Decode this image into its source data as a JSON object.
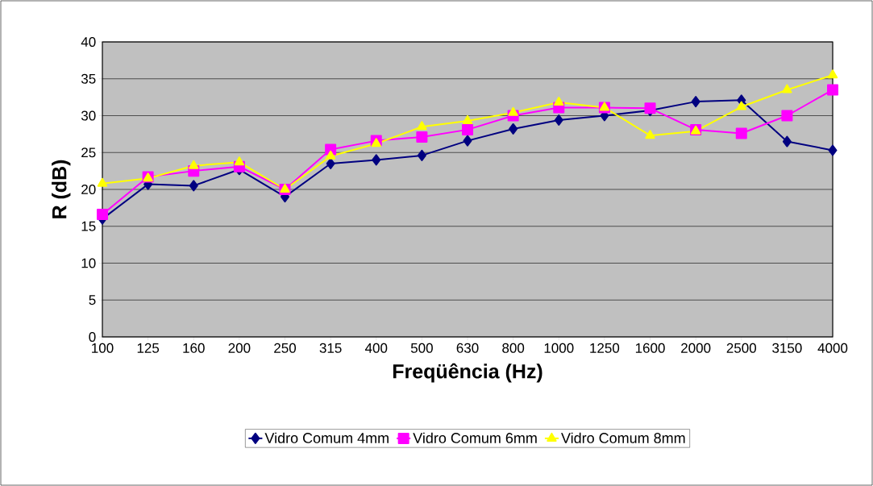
{
  "chart_data": {
    "type": "line",
    "xlabel": "Freqüência (Hz)",
    "ylabel": "R (dB)",
    "categories": [
      "100",
      "125",
      "160",
      "200",
      "250",
      "315",
      "400",
      "500",
      "630",
      "800",
      "1000",
      "1250",
      "1600",
      "2000",
      "2500",
      "3150",
      "4000"
    ],
    "series": [
      {
        "name": "Vidro Comum 4mm",
        "color": "#000080",
        "marker": "diamond",
        "values": [
          16.0,
          20.7,
          20.5,
          22.7,
          19.0,
          23.5,
          24.0,
          24.6,
          26.6,
          28.2,
          29.4,
          30.0,
          30.7,
          31.9,
          32.1,
          26.5,
          25.3
        ]
      },
      {
        "name": "Vidro Comum 6mm",
        "color": "#ff00ff",
        "marker": "square",
        "values": [
          16.6,
          21.7,
          22.5,
          23.1,
          20.0,
          25.4,
          26.6,
          27.1,
          28.1,
          30.0,
          31.1,
          31.1,
          31.0,
          28.1,
          27.6,
          30.0,
          33.5
        ]
      },
      {
        "name": "Vidro Comum 8mm",
        "color": "#ffff00",
        "marker": "triangle",
        "values": [
          20.8,
          21.5,
          23.2,
          23.7,
          20.0,
          24.5,
          26.2,
          28.5,
          29.3,
          30.4,
          31.8,
          31.1,
          27.3,
          27.9,
          31.2,
          33.5,
          35.5
        ]
      }
    ],
    "ylim": [
      0,
      40
    ],
    "yticks": [
      0,
      5,
      10,
      15,
      20,
      25,
      30,
      35,
      40
    ],
    "grid": "y",
    "legend": "bottom"
  }
}
